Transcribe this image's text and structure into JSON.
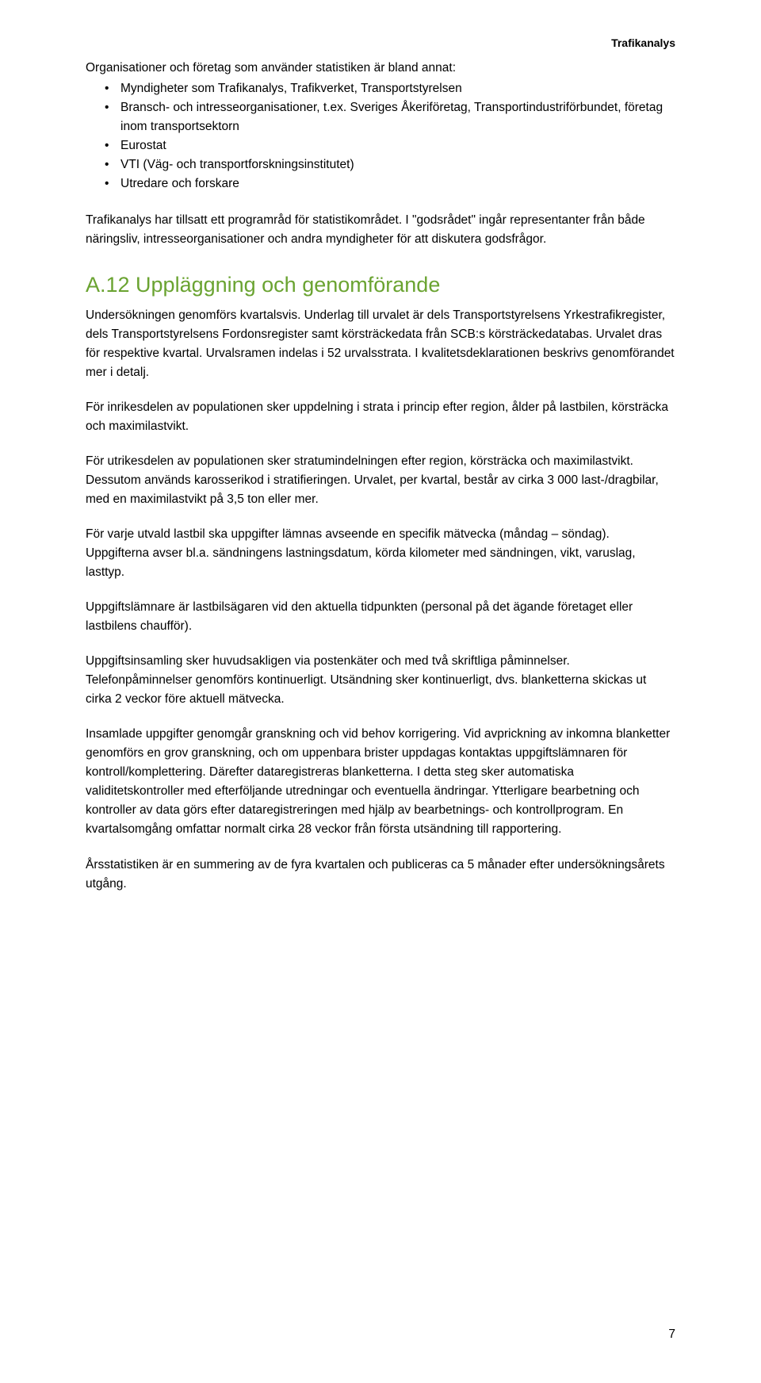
{
  "colors": {
    "heading": "#6aa331",
    "body": "#000000",
    "background": "#ffffff"
  },
  "header": {
    "brand": "Trafikanalys"
  },
  "intro": {
    "lead": "Organisationer och företag som använder statistiken är bland annat:",
    "bullets": [
      "Myndigheter som Trafikanalys, Trafikverket, Transportstyrelsen",
      "Bransch- och intresseorganisationer, t.ex. Sveriges Åkeriföretag, Transportindustriförbundet, företag inom transportsektorn",
      "Eurostat",
      "VTI (Väg- och transportforskningsinstitutet)",
      "Utredare och forskare"
    ],
    "after": "Trafikanalys har tillsatt ett programråd för statistikområdet. I \"godsrådet\" ingår representanter från både näringsliv, intresseorganisationer och andra myndigheter för att diskutera godsfrågor."
  },
  "section": {
    "heading": "A.12 Uppläggning och genomförande",
    "paragraphs": [
      "Undersökningen genomförs kvartalsvis. Underlag till urvalet är dels Transportstyrelsens Yrkestrafikregister, dels Transportstyrelsens Fordonsregister samt körsträckedata från SCB:s körsträckedatabas. Urvalet dras för respektive kvartal. Urvalsramen indelas i 52 urvalsstrata. I kvalitetsdeklarationen beskrivs genomförandet mer i detalj.",
      "För inrikesdelen av populationen sker uppdelning i strata i princip efter region, ålder på lastbilen, körsträcka och maximilastvikt.",
      "För utrikesdelen av populationen sker stratumindelningen efter region, körsträcka och maximilastvikt. Dessutom används karosserikod i stratifieringen. Urvalet, per kvartal, består av cirka 3 000 last-/dragbilar, med en maximilastvikt på 3,5 ton eller mer.",
      "För varje utvald lastbil ska uppgifter lämnas avseende en specifik mätvecka (måndag – söndag). Uppgifterna avser bl.a. sändningens lastningsdatum, körda kilometer med sändningen, vikt, varuslag, lasttyp.",
      "Uppgiftslämnare är lastbilsägaren vid den aktuella tidpunkten (personal på det ägande företaget eller lastbilens chaufför).",
      "Uppgiftsinsamling sker huvudsakligen via postenkäter och med två skriftliga påminnelser. Telefonpåminnelser genomförs kontinuerligt. Utsändning sker kontinuerligt, dvs. blanketterna skickas ut cirka 2 veckor före aktuell mätvecka.",
      "Insamlade uppgifter genomgår granskning och vid behov korrigering. Vid avprickning av inkomna blanketter genomförs en grov granskning, och om uppenbara brister uppdagas kontaktas uppgiftslämnaren för kontroll/komplettering. Därefter dataregistreras blanketterna. I detta steg sker automatiska validitetskontroller med efterföljande utredningar och eventuella ändringar. Ytterligare bearbetning och kontroller av data görs efter dataregistreringen med hjälp av bearbetnings- och kontrollprogram. En kvartalsomgång omfattar normalt cirka 28 veckor från första utsändning till rapportering.",
      "Årsstatistiken är en summering av de fyra kvartalen och publiceras ca 5 månader efter undersökningsårets utgång."
    ]
  },
  "pageNumber": "7"
}
